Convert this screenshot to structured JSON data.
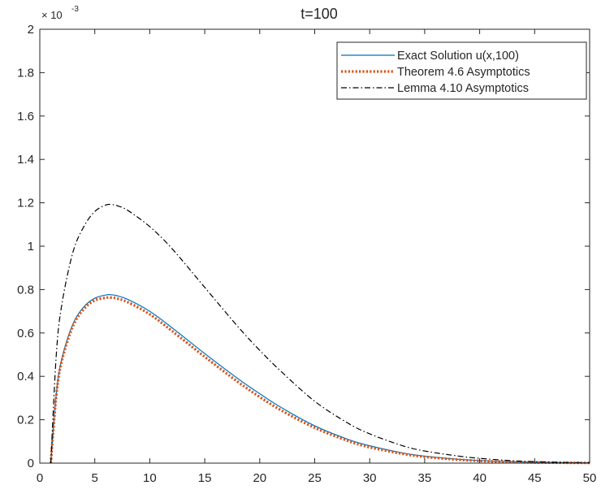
{
  "chart_data": {
    "type": "line",
    "title": "t=100",
    "xlabel": "",
    "ylabel": "",
    "xlim": [
      0,
      50
    ],
    "ylim": [
      0,
      2
    ],
    "y_exponent_label": "× 10",
    "y_exponent_power": "-3",
    "x_ticks": [
      "0",
      "5",
      "10",
      "15",
      "20",
      "25",
      "30",
      "35",
      "40",
      "45",
      "50"
    ],
    "y_ticks": [
      "0",
      "0.2",
      "0.4",
      "0.6",
      "0.8",
      "1",
      "1.2",
      "1.4",
      "1.6",
      "1.8",
      "2"
    ],
    "grid": false,
    "legend_position": "top-right",
    "x": [
      1,
      1.5,
      2,
      3,
      4,
      5,
      6,
      6.5,
      7,
      8,
      10,
      12,
      15,
      18,
      20,
      22,
      25,
      28,
      30,
      33,
      35,
      38,
      40,
      43,
      45,
      48,
      50
    ],
    "series": [
      {
        "name": "Exact Solution u(x,100)",
        "color": "#0072BD",
        "style": "solid",
        "values": [
          0.0,
          0.32,
          0.48,
          0.64,
          0.72,
          0.76,
          0.775,
          0.776,
          0.772,
          0.755,
          0.7,
          0.625,
          0.505,
          0.39,
          0.32,
          0.255,
          0.172,
          0.11,
          0.08,
          0.047,
          0.032,
          0.018,
          0.012,
          0.006,
          0.004,
          0.002,
          0.001
        ]
      },
      {
        "name": "Theorem 4.6 Asymptotics",
        "color": "#D95319",
        "style": "dotted",
        "values": [
          0.0,
          0.31,
          0.47,
          0.63,
          0.71,
          0.75,
          0.762,
          0.763,
          0.759,
          0.742,
          0.686,
          0.61,
          0.49,
          0.375,
          0.305,
          0.242,
          0.163,
          0.103,
          0.073,
          0.043,
          0.029,
          0.016,
          0.01,
          0.005,
          0.003,
          0.0015,
          0.001
        ]
      },
      {
        "name": "Lemma 4.10 Asymptotics",
        "color": "#000000",
        "style": "dashdot",
        "values": [
          0.0,
          0.5,
          0.73,
          0.97,
          1.09,
          1.16,
          1.19,
          1.192,
          1.187,
          1.165,
          1.09,
          0.99,
          0.81,
          0.63,
          0.52,
          0.42,
          0.285,
          0.185,
          0.135,
          0.08,
          0.056,
          0.033,
          0.022,
          0.011,
          0.007,
          0.003,
          0.002
        ]
      }
    ]
  }
}
